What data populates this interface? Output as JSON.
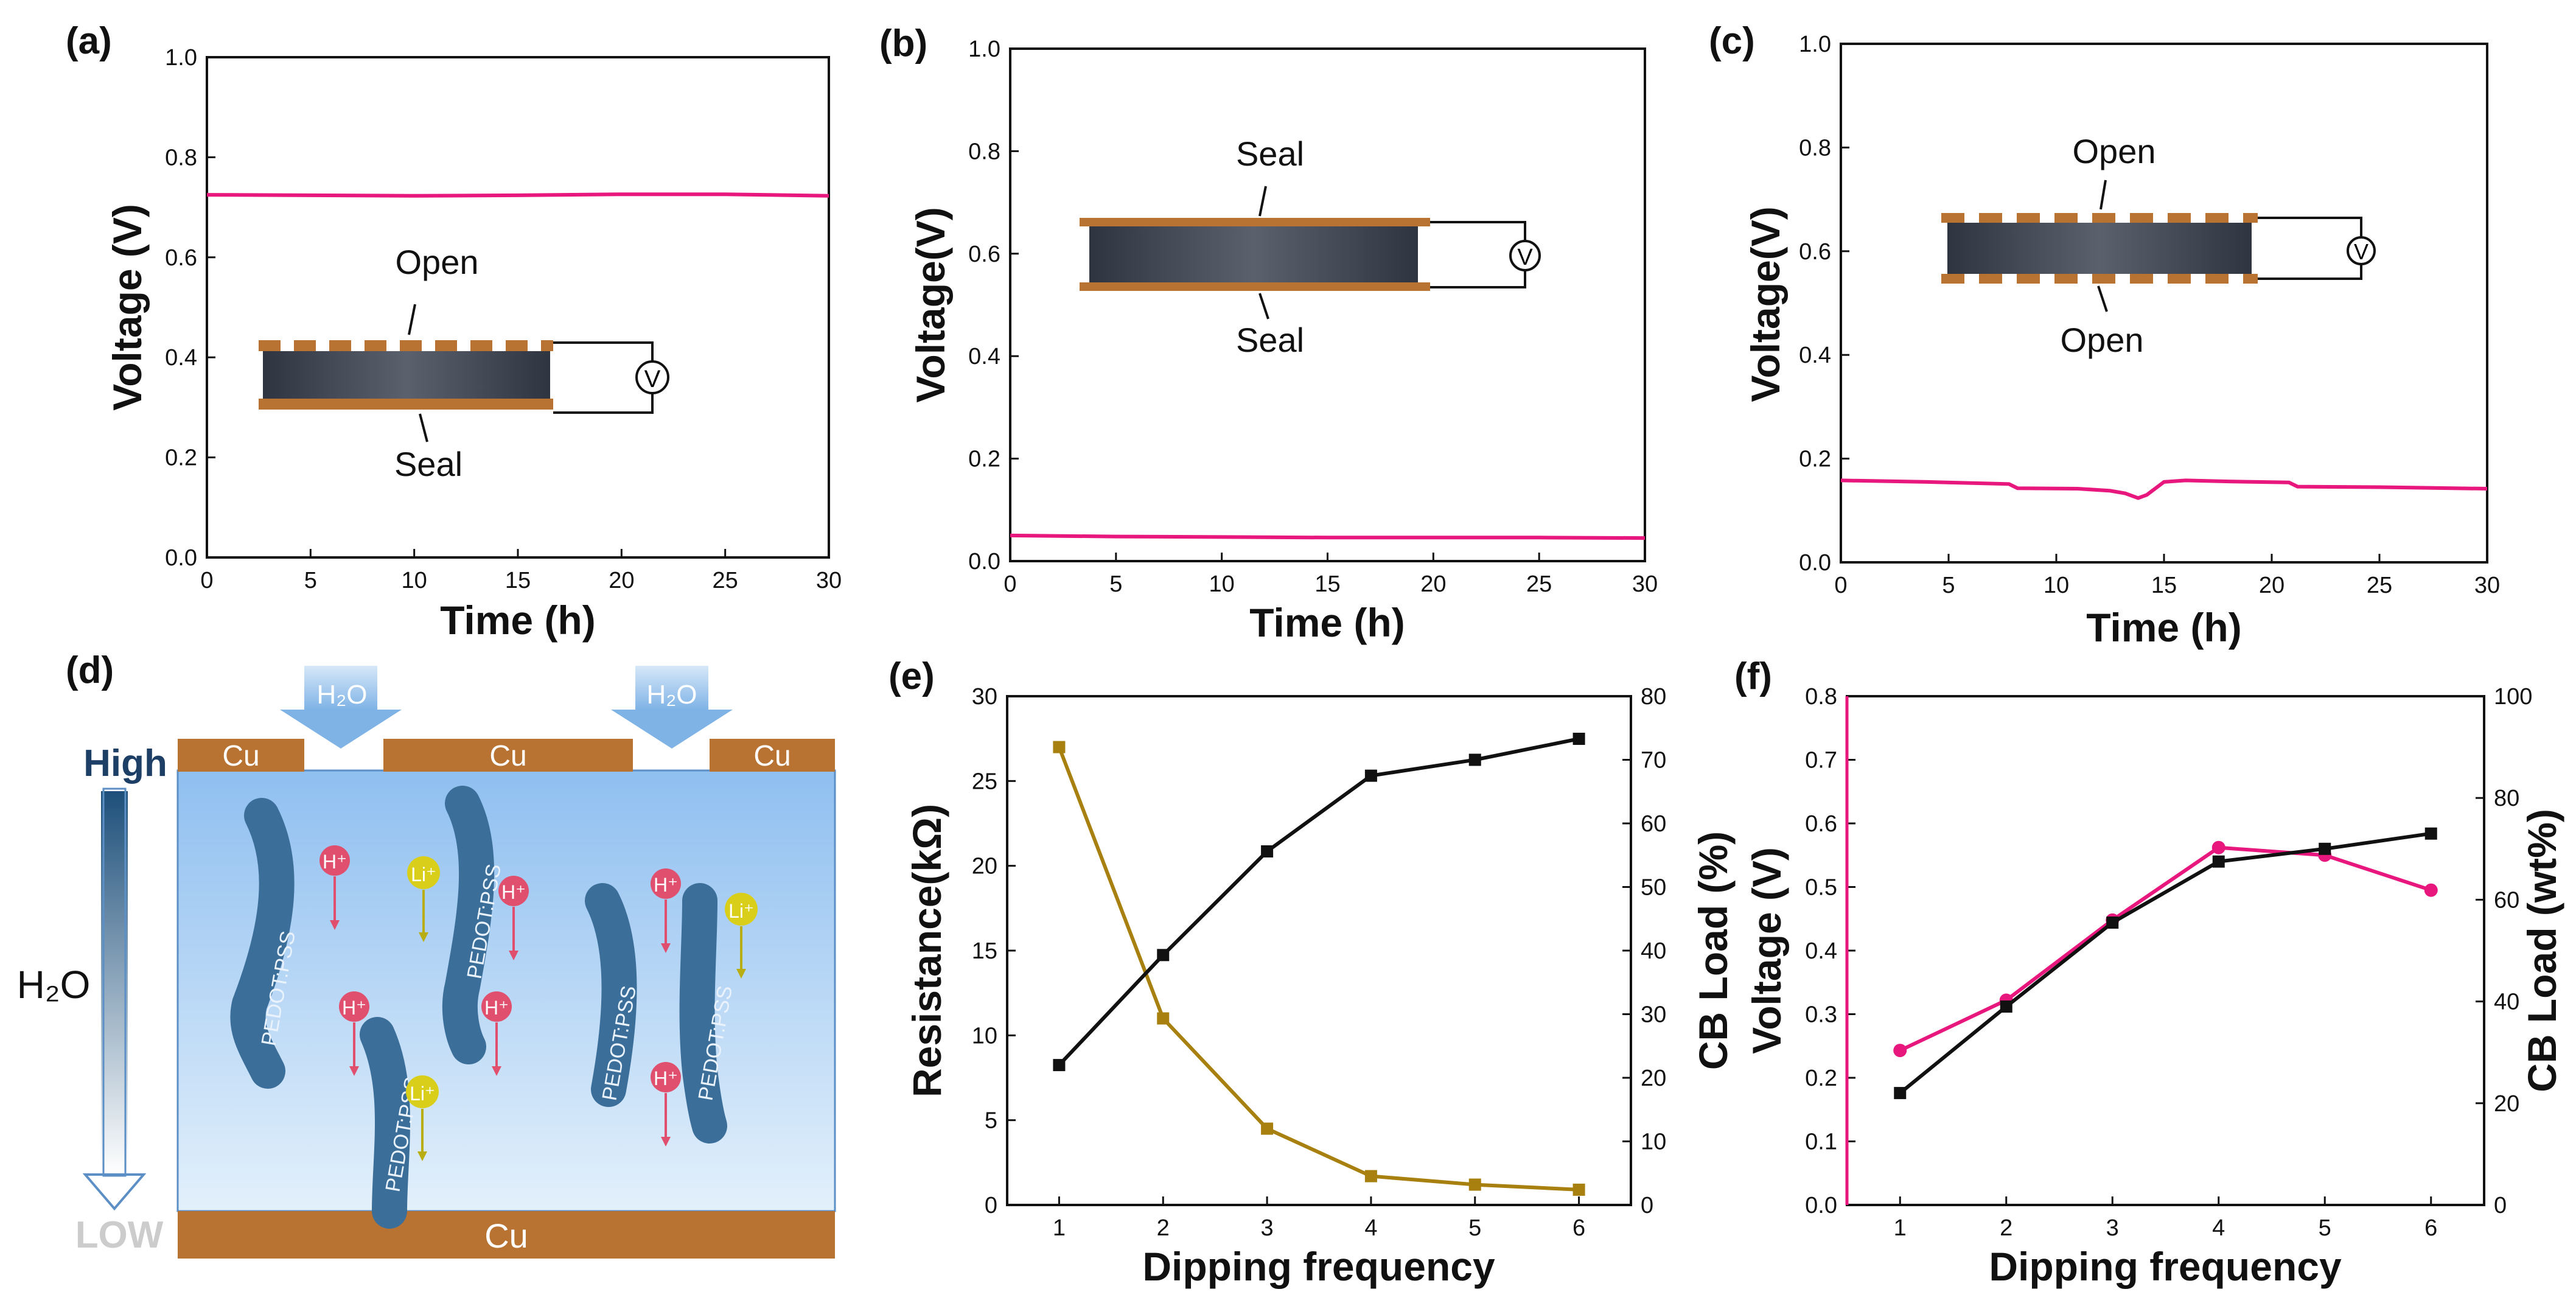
{
  "panel_labels": [
    "(a)",
    "(b)",
    "(c)",
    "(d)",
    "(e)",
    "(f)"
  ],
  "colors": {
    "voltage": "#e8177d",
    "cb": "#111111",
    "resistance": "#a8800f",
    "cu": "#b87333",
    "electrolyte_top": "#8fbff0",
    "electrolyte_bottom": "#e3f0fb",
    "chain": "#3b6f9a",
    "proton": "#e0506e",
    "lithium": "#d9cf1a"
  },
  "chart_data": [
    {
      "id": "a",
      "type": "line",
      "xlabel": "Time (h)",
      "ylabel": "Voltage (V)",
      "xlim": [
        0,
        30
      ],
      "ylim": [
        0,
        1.0
      ],
      "xticks": [
        "0",
        "5",
        "10",
        "15",
        "20",
        "25",
        "30"
      ],
      "yticks": [
        "0.0",
        "0.2",
        "0.4",
        "0.6",
        "0.8",
        "1.0"
      ],
      "series": [
        {
          "name": "Voltage",
          "x": [
            0,
            5,
            10,
            15,
            20,
            25,
            30
          ],
          "y": [
            0.725,
            0.724,
            0.723,
            0.724,
            0.726,
            0.726,
            0.723
          ]
        }
      ],
      "annotations": {
        "top": "Open",
        "bottom": "Seal",
        "meter": "V"
      }
    },
    {
      "id": "b",
      "type": "line",
      "xlabel": "Time (h)",
      "ylabel": "Voltage(V)",
      "xlim": [
        0,
        30
      ],
      "ylim": [
        0,
        1.0
      ],
      "xticks": [
        "0",
        "5",
        "10",
        "15",
        "20",
        "25",
        "30"
      ],
      "yticks": [
        "0.0",
        "0.2",
        "0.4",
        "0.6",
        "0.8",
        "1.0"
      ],
      "series": [
        {
          "name": "Voltage",
          "x": [
            0,
            5,
            10,
            15,
            20,
            25,
            30
          ],
          "y": [
            0.05,
            0.048,
            0.047,
            0.046,
            0.046,
            0.046,
            0.045
          ]
        }
      ],
      "annotations": {
        "top": "Seal",
        "bottom": "Seal",
        "meter": "V"
      }
    },
    {
      "id": "c",
      "type": "line",
      "xlabel": "Time (h)",
      "ylabel": "Voltage(V)",
      "xlim": [
        0,
        30
      ],
      "ylim": [
        0,
        1.0
      ],
      "xticks": [
        "0",
        "5",
        "10",
        "15",
        "20",
        "25",
        "30"
      ],
      "yticks": [
        "0.0",
        "0.2",
        "0.4",
        "0.6",
        "0.8",
        "1.0"
      ],
      "series": [
        {
          "name": "Voltage",
          "x": [
            0,
            4,
            7.8,
            8.2,
            11,
            12.5,
            13.2,
            13.8,
            14.2,
            15,
            16,
            18,
            20.8,
            21.2,
            25,
            30
          ],
          "y": [
            0.158,
            0.155,
            0.151,
            0.143,
            0.142,
            0.138,
            0.133,
            0.124,
            0.13,
            0.155,
            0.158,
            0.156,
            0.154,
            0.146,
            0.145,
            0.142
          ]
        }
      ],
      "annotations": {
        "top": "Open",
        "bottom": "Open",
        "meter": "V"
      }
    },
    {
      "id": "e",
      "type": "line",
      "xlabel": "Dipping frequency",
      "ylabel": "Resistance(kΩ)",
      "ylabel_right": "CB Load (%)",
      "xlim": [
        0.5,
        6.5
      ],
      "ylim": [
        0,
        30
      ],
      "ylim_right": [
        0,
        80
      ],
      "xticks": [
        "1",
        "2",
        "3",
        "4",
        "5",
        "6"
      ],
      "yticks": [
        "0",
        "5",
        "10",
        "15",
        "20",
        "25",
        "30"
      ],
      "yticks_right": [
        "0",
        "10",
        "20",
        "30",
        "40",
        "50",
        "60",
        "70",
        "80"
      ],
      "series": [
        {
          "name": "Resistance",
          "axis": "left",
          "x": [
            1,
            2,
            3,
            4,
            5,
            6
          ],
          "y": [
            27.0,
            11.0,
            4.5,
            1.7,
            1.2,
            0.9
          ]
        },
        {
          "name": "CB Load",
          "axis": "right",
          "x": [
            1,
            2,
            3,
            4,
            5,
            6
          ],
          "y": [
            22.0,
            39.3,
            55.6,
            67.5,
            70.0,
            73.3
          ]
        }
      ]
    },
    {
      "id": "f",
      "type": "line",
      "xlabel": "Dipping frequency",
      "ylabel": "Voltage (V)",
      "ylabel_right": "CB Load (wt%)",
      "xlim": [
        0.5,
        6.5
      ],
      "ylim": [
        0,
        0.8
      ],
      "ylim_right": [
        0,
        100
      ],
      "xticks": [
        "1",
        "2",
        "3",
        "4",
        "5",
        "6"
      ],
      "yticks": [
        "0.0",
        "0.1",
        "0.2",
        "0.3",
        "0.4",
        "0.5",
        "0.6",
        "0.7",
        "0.8"
      ],
      "yticks_right": [
        "0",
        "20",
        "40",
        "60",
        "80",
        "100"
      ],
      "series": [
        {
          "name": "Voltage",
          "axis": "left",
          "x": [
            1,
            2,
            3,
            4,
            5,
            6
          ],
          "y": [
            0.243,
            0.322,
            0.448,
            0.562,
            0.55,
            0.495
          ]
        },
        {
          "name": "CB Load",
          "axis": "right",
          "x": [
            1,
            2,
            3,
            4,
            5,
            6
          ],
          "y": [
            22.0,
            39.0,
            55.5,
            67.5,
            70.0,
            73.0
          ]
        }
      ]
    }
  ],
  "diagram": {
    "gradient_high": "High",
    "gradient_low": "LOW",
    "gradient_label": "H₂O",
    "water_label": "H₂O",
    "cu_label": "Cu",
    "chain_label": "PEDOT:PSS",
    "proton_label": "H⁺",
    "lithium_label": "Li⁺"
  }
}
